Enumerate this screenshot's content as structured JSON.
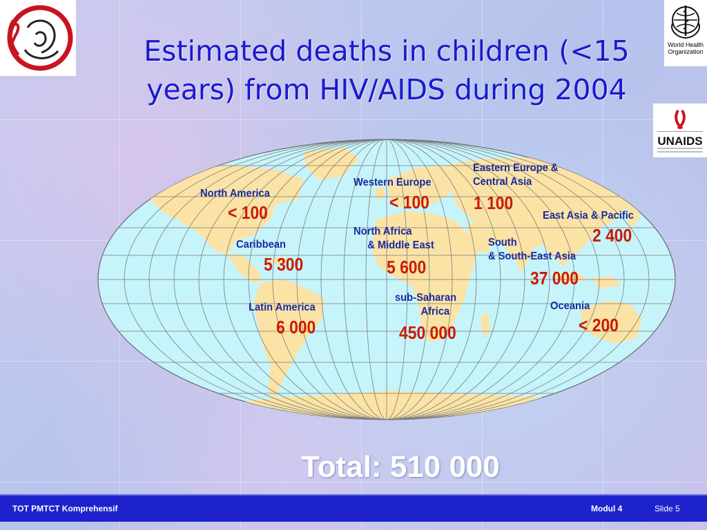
{
  "slide": {
    "title_line1": "Estimated deaths in children (<15",
    "title_line2": "years) from HIV/AIDS during 2004",
    "total": "Total: 510 000"
  },
  "regions": [
    {
      "label_lines": [
        "North America"
      ],
      "value": "< 100"
    },
    {
      "label_lines": [
        "Caribbean"
      ],
      "value": "5 300"
    },
    {
      "label_lines": [
        "Latin America"
      ],
      "value": "6 000"
    },
    {
      "label_lines": [
        "Western Europe"
      ],
      "value": "< 100"
    },
    {
      "label_lines": [
        "North Africa",
        "& Middle East"
      ],
      "value": "5 600"
    },
    {
      "label_lines": [
        "sub-Saharan",
        "Africa"
      ],
      "value": "450 000"
    },
    {
      "label_lines": [
        "Eastern Europe &",
        "Central Asia"
      ],
      "value": "1 100"
    },
    {
      "label_lines": [
        "East Asia & Pacific"
      ],
      "value": "2 400"
    },
    {
      "label_lines": [
        "South",
        "& South-East Asia"
      ],
      "value": "37 000"
    },
    {
      "label_lines": [
        "Oceania"
      ],
      "value": "< 200"
    }
  ],
  "logos": {
    "who_text_1": "World Health",
    "who_text_2": "Organization",
    "unaids_text": "UNAIDS"
  },
  "footer": {
    "left": "TOT PMTCT Komprehensif",
    "module": "Modul 4",
    "slide": "Slide 5"
  },
  "colors": {
    "title": "#1a1acc",
    "label": "#1a2aa0",
    "value": "#cc1a00",
    "footer_bg": "#1e22cc",
    "ocean": "#c6f4fb",
    "land": "#fbe3a5"
  }
}
